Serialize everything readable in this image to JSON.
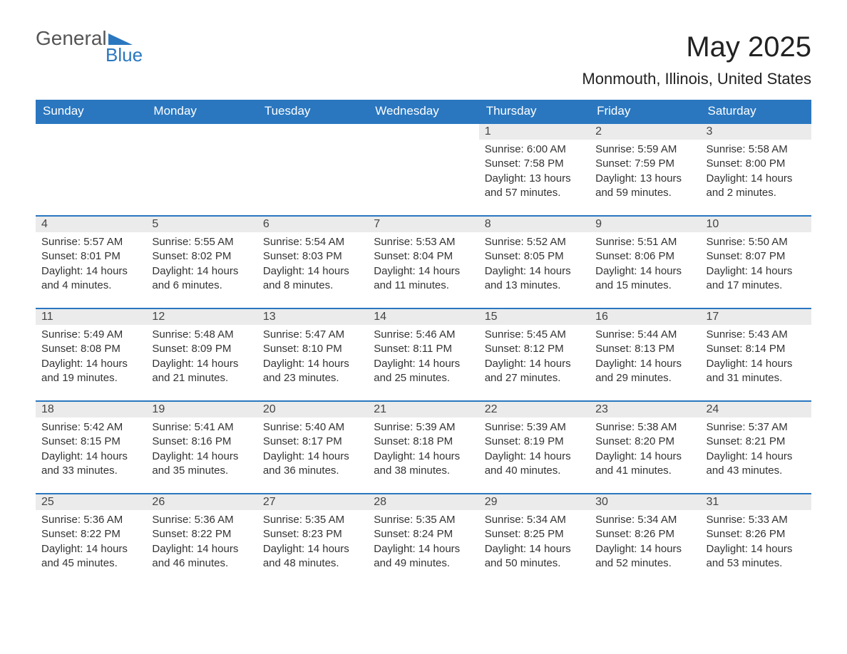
{
  "logo": {
    "part1": "General",
    "part2": "Blue"
  },
  "title": "May 2025",
  "subtitle": "Monmouth, Illinois, United States",
  "colors": {
    "header_bg": "#2a77c0",
    "header_text": "#ffffff",
    "daynum_bg": "#ebebeb",
    "row_border": "#2a77c0",
    "body_text": "#333333",
    "page_bg": "#ffffff"
  },
  "weekdays": [
    "Sunday",
    "Monday",
    "Tuesday",
    "Wednesday",
    "Thursday",
    "Friday",
    "Saturday"
  ],
  "weeks": [
    [
      {
        "blank": true
      },
      {
        "blank": true
      },
      {
        "blank": true
      },
      {
        "blank": true
      },
      {
        "day": "1",
        "sunrise": "Sunrise: 6:00 AM",
        "sunset": "Sunset: 7:58 PM",
        "daylight": "Daylight: 13 hours and 57 minutes."
      },
      {
        "day": "2",
        "sunrise": "Sunrise: 5:59 AM",
        "sunset": "Sunset: 7:59 PM",
        "daylight": "Daylight: 13 hours and 59 minutes."
      },
      {
        "day": "3",
        "sunrise": "Sunrise: 5:58 AM",
        "sunset": "Sunset: 8:00 PM",
        "daylight": "Daylight: 14 hours and 2 minutes."
      }
    ],
    [
      {
        "day": "4",
        "sunrise": "Sunrise: 5:57 AM",
        "sunset": "Sunset: 8:01 PM",
        "daylight": "Daylight: 14 hours and 4 minutes."
      },
      {
        "day": "5",
        "sunrise": "Sunrise: 5:55 AM",
        "sunset": "Sunset: 8:02 PM",
        "daylight": "Daylight: 14 hours and 6 minutes."
      },
      {
        "day": "6",
        "sunrise": "Sunrise: 5:54 AM",
        "sunset": "Sunset: 8:03 PM",
        "daylight": "Daylight: 14 hours and 8 minutes."
      },
      {
        "day": "7",
        "sunrise": "Sunrise: 5:53 AM",
        "sunset": "Sunset: 8:04 PM",
        "daylight": "Daylight: 14 hours and 11 minutes."
      },
      {
        "day": "8",
        "sunrise": "Sunrise: 5:52 AM",
        "sunset": "Sunset: 8:05 PM",
        "daylight": "Daylight: 14 hours and 13 minutes."
      },
      {
        "day": "9",
        "sunrise": "Sunrise: 5:51 AM",
        "sunset": "Sunset: 8:06 PM",
        "daylight": "Daylight: 14 hours and 15 minutes."
      },
      {
        "day": "10",
        "sunrise": "Sunrise: 5:50 AM",
        "sunset": "Sunset: 8:07 PM",
        "daylight": "Daylight: 14 hours and 17 minutes."
      }
    ],
    [
      {
        "day": "11",
        "sunrise": "Sunrise: 5:49 AM",
        "sunset": "Sunset: 8:08 PM",
        "daylight": "Daylight: 14 hours and 19 minutes."
      },
      {
        "day": "12",
        "sunrise": "Sunrise: 5:48 AM",
        "sunset": "Sunset: 8:09 PM",
        "daylight": "Daylight: 14 hours and 21 minutes."
      },
      {
        "day": "13",
        "sunrise": "Sunrise: 5:47 AM",
        "sunset": "Sunset: 8:10 PM",
        "daylight": "Daylight: 14 hours and 23 minutes."
      },
      {
        "day": "14",
        "sunrise": "Sunrise: 5:46 AM",
        "sunset": "Sunset: 8:11 PM",
        "daylight": "Daylight: 14 hours and 25 minutes."
      },
      {
        "day": "15",
        "sunrise": "Sunrise: 5:45 AM",
        "sunset": "Sunset: 8:12 PM",
        "daylight": "Daylight: 14 hours and 27 minutes."
      },
      {
        "day": "16",
        "sunrise": "Sunrise: 5:44 AM",
        "sunset": "Sunset: 8:13 PM",
        "daylight": "Daylight: 14 hours and 29 minutes."
      },
      {
        "day": "17",
        "sunrise": "Sunrise: 5:43 AM",
        "sunset": "Sunset: 8:14 PM",
        "daylight": "Daylight: 14 hours and 31 minutes."
      }
    ],
    [
      {
        "day": "18",
        "sunrise": "Sunrise: 5:42 AM",
        "sunset": "Sunset: 8:15 PM",
        "daylight": "Daylight: 14 hours and 33 minutes."
      },
      {
        "day": "19",
        "sunrise": "Sunrise: 5:41 AM",
        "sunset": "Sunset: 8:16 PM",
        "daylight": "Daylight: 14 hours and 35 minutes."
      },
      {
        "day": "20",
        "sunrise": "Sunrise: 5:40 AM",
        "sunset": "Sunset: 8:17 PM",
        "daylight": "Daylight: 14 hours and 36 minutes."
      },
      {
        "day": "21",
        "sunrise": "Sunrise: 5:39 AM",
        "sunset": "Sunset: 8:18 PM",
        "daylight": "Daylight: 14 hours and 38 minutes."
      },
      {
        "day": "22",
        "sunrise": "Sunrise: 5:39 AM",
        "sunset": "Sunset: 8:19 PM",
        "daylight": "Daylight: 14 hours and 40 minutes."
      },
      {
        "day": "23",
        "sunrise": "Sunrise: 5:38 AM",
        "sunset": "Sunset: 8:20 PM",
        "daylight": "Daylight: 14 hours and 41 minutes."
      },
      {
        "day": "24",
        "sunrise": "Sunrise: 5:37 AM",
        "sunset": "Sunset: 8:21 PM",
        "daylight": "Daylight: 14 hours and 43 minutes."
      }
    ],
    [
      {
        "day": "25",
        "sunrise": "Sunrise: 5:36 AM",
        "sunset": "Sunset: 8:22 PM",
        "daylight": "Daylight: 14 hours and 45 minutes."
      },
      {
        "day": "26",
        "sunrise": "Sunrise: 5:36 AM",
        "sunset": "Sunset: 8:22 PM",
        "daylight": "Daylight: 14 hours and 46 minutes."
      },
      {
        "day": "27",
        "sunrise": "Sunrise: 5:35 AM",
        "sunset": "Sunset: 8:23 PM",
        "daylight": "Daylight: 14 hours and 48 minutes."
      },
      {
        "day": "28",
        "sunrise": "Sunrise: 5:35 AM",
        "sunset": "Sunset: 8:24 PM",
        "daylight": "Daylight: 14 hours and 49 minutes."
      },
      {
        "day": "29",
        "sunrise": "Sunrise: 5:34 AM",
        "sunset": "Sunset: 8:25 PM",
        "daylight": "Daylight: 14 hours and 50 minutes."
      },
      {
        "day": "30",
        "sunrise": "Sunrise: 5:34 AM",
        "sunset": "Sunset: 8:26 PM",
        "daylight": "Daylight: 14 hours and 52 minutes."
      },
      {
        "day": "31",
        "sunrise": "Sunrise: 5:33 AM",
        "sunset": "Sunset: 8:26 PM",
        "daylight": "Daylight: 14 hours and 53 minutes."
      }
    ]
  ]
}
